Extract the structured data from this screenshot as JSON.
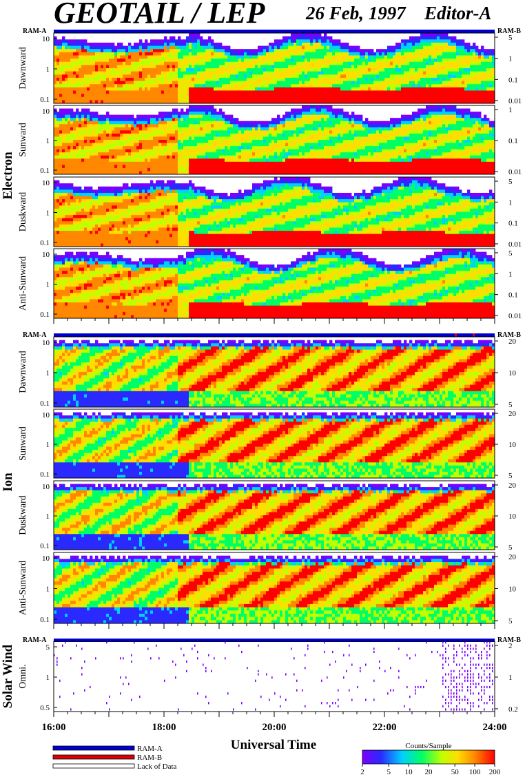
{
  "header": {
    "title": "GEOTAIL / LEP",
    "date": "26 Feb, 1997",
    "editor": "Editor-A"
  },
  "colors": {
    "ram_a": "#0000cc",
    "ram_b": "#dd0000",
    "colorscale": [
      "#7a00ff",
      "#2a2aff",
      "#00d0ff",
      "#00ff66",
      "#bfff00",
      "#ffdd00",
      "#ff8800",
      "#ff0000"
    ]
  },
  "chart_data": {
    "type": "heatmap",
    "xlabel": "Universal Time",
    "x_ticks": [
      "16:00",
      "18:00",
      "20:00",
      "22:00",
      "24:00"
    ],
    "sections": [
      {
        "name": "Electron",
        "panels": [
          {
            "label": "Dawnward",
            "left_ticks": [
              "10",
              "1",
              "0.1"
            ],
            "right_ticks": [
              "5",
              "1",
              "0.1",
              "0.01"
            ],
            "kind": "electron",
            "seed": 11
          },
          {
            "label": "Sunward",
            "left_ticks": [
              "10",
              "1",
              "0.1"
            ],
            "right_ticks": [
              "1",
              "0.1",
              "0.01"
            ],
            "kind": "electron",
            "seed": 23
          },
          {
            "label": "Duskward",
            "left_ticks": [
              "10",
              "1",
              "0.1"
            ],
            "right_ticks": [
              "5",
              "1",
              "0.1",
              "0.01"
            ],
            "kind": "electron",
            "seed": 37
          },
          {
            "label": "Anti-Sunward",
            "left_ticks": [
              "10",
              "1",
              "0.1"
            ],
            "right_ticks": [
              "5",
              "1",
              "0.1",
              "0.01"
            ],
            "kind": "electron",
            "seed": 41
          }
        ]
      },
      {
        "name": "Ion",
        "panels": [
          {
            "label": "Dawnward",
            "left_ticks": [
              "10",
              "1",
              "0.1"
            ],
            "right_ticks": [
              "20",
              "10",
              "5"
            ],
            "kind": "ion",
            "seed": 53
          },
          {
            "label": "Sunward",
            "left_ticks": [
              "10",
              "1",
              "0.1"
            ],
            "right_ticks": [
              "20",
              "10",
              "5"
            ],
            "kind": "ion",
            "seed": 67
          },
          {
            "label": "Duskward",
            "left_ticks": [
              "10",
              "1",
              "0.1"
            ],
            "right_ticks": [
              "20",
              "10",
              "5"
            ],
            "kind": "ion",
            "seed": 71
          },
          {
            "label": "Anti-Sunward",
            "left_ticks": [
              "10",
              "1",
              "0.1"
            ],
            "right_ticks": [
              "20",
              "10",
              "5"
            ],
            "kind": "ion",
            "seed": 89
          }
        ]
      },
      {
        "name": "Solar Wind",
        "panels": [
          {
            "label": "Omni.",
            "left_ticks": [
              "5",
              "1",
              "0.5"
            ],
            "right_ticks": [
              "2",
              "1",
              "0.2"
            ],
            "kind": "solar",
            "seed": 97
          }
        ]
      }
    ],
    "mode_bar_labels": {
      "left": "RAM-A",
      "right": "RAM-B"
    },
    "legend": [
      {
        "label": "RAM-A",
        "color": "#0000cc"
      },
      {
        "label": "RAM-B",
        "color": "#dd0000"
      },
      {
        "label": "Lack of Data",
        "color": "#ffffff"
      }
    ],
    "colorbar": {
      "title": "Counts/Sample",
      "ticks": [
        "2",
        "5",
        "10",
        "20",
        "50",
        "100",
        "200"
      ]
    }
  }
}
